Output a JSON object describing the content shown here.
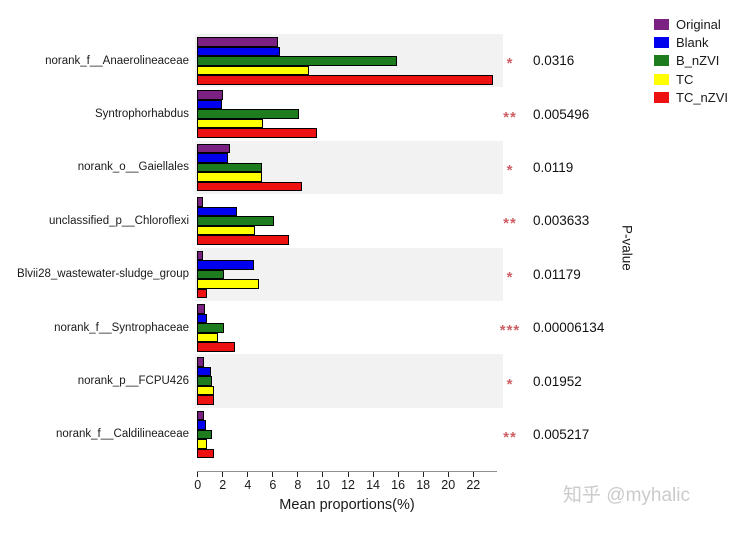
{
  "chart_data": {
    "type": "bar",
    "orientation": "horizontal",
    "title": "",
    "xlabel": "Mean proportions(%)",
    "right_axis_label": "P-value",
    "x_ticks": [
      0,
      2,
      4,
      6,
      8,
      10,
      12,
      14,
      16,
      18,
      20,
      22
    ],
    "xlim": [
      0,
      23.9
    ],
    "grid": false,
    "legend_position": "top-right",
    "stripe_color": "#f2f2f2",
    "sig_color": "#cd6066",
    "categories": [
      "norank_f__Anaerolineaceae",
      "Syntrophorhabdus",
      "norank_o__Gaiellales",
      "unclassified_p__Chloroflexi",
      "Blvii28_wastewater-sludge_group",
      "norank_f__Syntrophaceae",
      "norank_p__FCPU426",
      "norank_f__Caldilineaceae"
    ],
    "series": [
      {
        "name": "Original",
        "color": "#7b2182",
        "values": [
          6.3,
          1.9,
          2.5,
          0.3,
          0.35,
          0.45,
          0.4,
          0.4
        ]
      },
      {
        "name": "Blank",
        "color": "#0000ee",
        "values": [
          6.5,
          1.8,
          2.3,
          3.0,
          4.4,
          0.65,
          0.95,
          0.55
        ]
      },
      {
        "name": "B_nZVI",
        "color": "#1d7c1d",
        "values": [
          15.8,
          8.0,
          5.0,
          6.0,
          2.0,
          2.0,
          1.05,
          1.05
        ]
      },
      {
        "name": "TC",
        "color": "#ffff00",
        "values": [
          8.8,
          5.1,
          5.0,
          4.5,
          4.8,
          1.5,
          1.2,
          0.65
        ]
      },
      {
        "name": "TC_nZVI",
        "color": "#ee1111",
        "values": [
          23.5,
          9.4,
          8.2,
          7.2,
          0.6,
          2.85,
          1.2,
          1.2
        ]
      }
    ],
    "p_values": [
      "0.0316",
      "0.005496",
      "0.0119",
      "0.003633",
      "0.01179",
      "0.00006134",
      "0.01952",
      "0.005217"
    ],
    "significance": [
      "*",
      "**",
      "*",
      "**",
      "*",
      "***",
      "*",
      "**"
    ]
  },
  "watermark": {
    "text": "知乎 @myhalic"
  }
}
